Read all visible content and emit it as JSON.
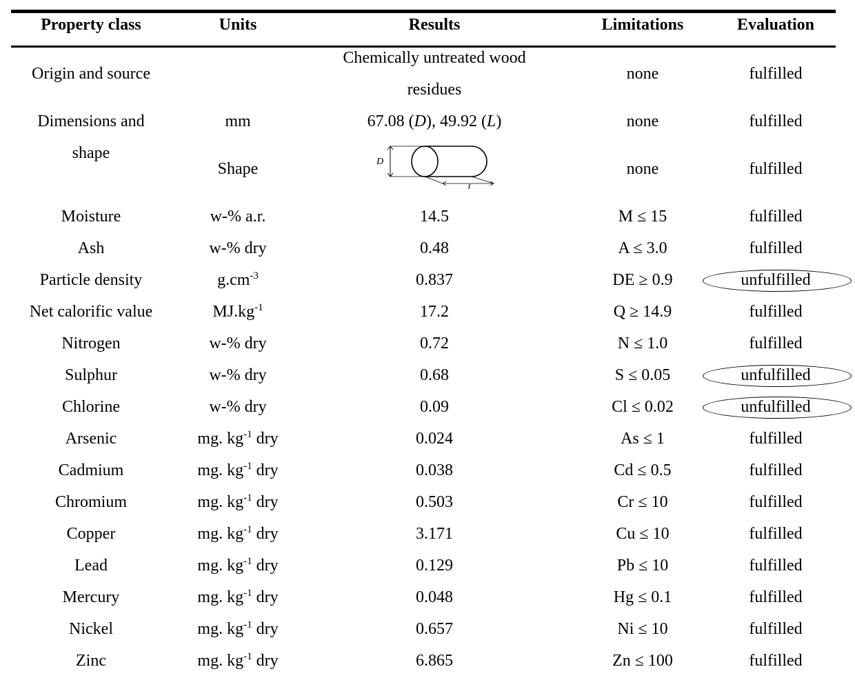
{
  "columns": [
    "Property class",
    "Units",
    "Results",
    "Limitations",
    "Evaluation"
  ],
  "origin": {
    "property": "Origin and source",
    "units": "",
    "result_line1": "Chemically untreated wood",
    "result_line2": "residues",
    "limitation": "none",
    "evaluation": "fulfilled"
  },
  "dimensions": {
    "property_line1": "Dimensions and",
    "property_line2": "shape",
    "units": "mm",
    "result_d": "67.08",
    "result_d_sym": "D",
    "result_l": "49.92",
    "result_l_sym": "L",
    "limitation": "none",
    "evaluation": "fulfilled"
  },
  "shape": {
    "units": "Shape",
    "limitation": "none",
    "evaluation": "fulfilled"
  },
  "rows": [
    {
      "property": "Moisture",
      "units": "w-% a.r.",
      "result": "14.5",
      "limitation": "M ≤ 15",
      "evaluation": "fulfilled"
    },
    {
      "property": "Ash",
      "units": "w-% dry",
      "result": "0.48",
      "limitation": "A ≤ 3.0",
      "evaluation": "fulfilled"
    },
    {
      "property": "Particle density",
      "units": "g.cm",
      "units_sup": "-3",
      "result": "0.837",
      "limitation": "DE ≥ 0.9",
      "evaluation": "unfulfilled"
    },
    {
      "property": "Net calorific value",
      "units": "MJ.kg",
      "units_sup": "-1",
      "result": "17.2",
      "limitation": "Q ≥ 14.9",
      "evaluation": "fulfilled"
    },
    {
      "property": "Nitrogen",
      "units": "w-% dry",
      "result": "0.72",
      "limitation": "N ≤ 1.0",
      "evaluation": "fulfilled"
    },
    {
      "property": "Sulphur",
      "units": "w-% dry",
      "result": "0.68",
      "limitation": "S ≤ 0.05",
      "evaluation": "unfulfilled"
    },
    {
      "property": "Chlorine",
      "units": "w-% dry",
      "result": "0.09",
      "limitation": "Cl ≤ 0.02",
      "evaluation": "unfulfilled"
    },
    {
      "property": "Arsenic",
      "units": "mg. kg",
      "units_sup": "-1",
      "units_post": " dry",
      "result": "0.024",
      "limitation": "As ≤ 1",
      "evaluation": "fulfilled"
    },
    {
      "property": "Cadmium",
      "units": "mg. kg",
      "units_sup": "-1",
      "units_post": " dry",
      "result": "0.038",
      "limitation": "Cd ≤ 0.5",
      "evaluation": "fulfilled"
    },
    {
      "property": "Chromium",
      "units": "mg. kg",
      "units_sup": "-1",
      "units_post": " dry",
      "result": "0.503",
      "limitation": "Cr ≤ 10",
      "evaluation": "fulfilled"
    },
    {
      "property": "Copper",
      "units": "mg. kg",
      "units_sup": "-1",
      "units_post": " dry",
      "result": "3.171",
      "limitation": "Cu ≤ 10",
      "evaluation": "fulfilled"
    },
    {
      "property": "Lead",
      "units": "mg. kg",
      "units_sup": "-1",
      "units_post": " dry",
      "result": "0.129",
      "limitation": "Pb ≤ 10",
      "evaluation": "fulfilled"
    },
    {
      "property": "Mercury",
      "units": "mg. kg",
      "units_sup": "-1",
      "units_post": " dry",
      "result": "0.048",
      "limitation": "Hg ≤ 0.1",
      "evaluation": "fulfilled"
    },
    {
      "property": "Nickel",
      "units": "mg. kg",
      "units_sup": "-1",
      "units_post": " dry",
      "result": "0.657",
      "limitation": "Ni ≤ 10",
      "evaluation": "fulfilled"
    },
    {
      "property": "Zinc",
      "units": "mg. kg",
      "units_sup": "-1",
      "units_post": " dry",
      "result": "6.865",
      "limitation": "Zn ≤ 100",
      "evaluation": "fulfilled"
    }
  ]
}
